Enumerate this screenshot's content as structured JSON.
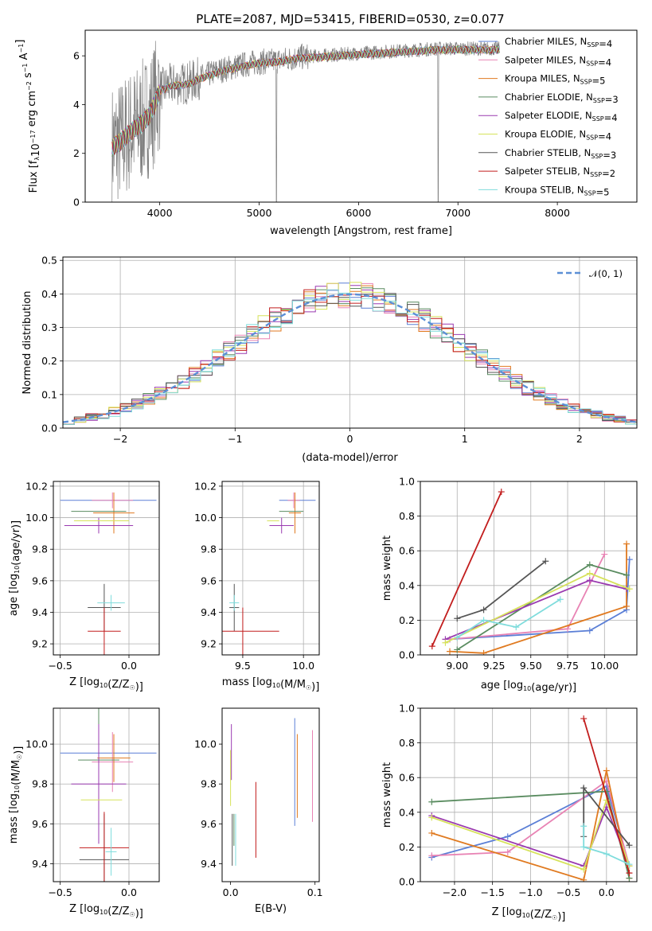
{
  "title": "PLATE=2087, MJD=53415, FIBERID=0530, z=0.077",
  "colors": {
    "Chabrier MILES": "#5b7fd6",
    "Salpeter MILES": "#e883b4",
    "Kroupa MILES": "#e07a20",
    "Chabrier ELODIE": "#5a8c60",
    "Salpeter ELODIE": "#9a3ab0",
    "Kroupa ELODIE": "#d6e25a",
    "Chabrier STELIB": "#555555",
    "Salpeter STELIB": "#c21d1d",
    "Kroupa STELIB": "#7fdcdc",
    "data": "#808080",
    "normal": "#5b8fd6"
  },
  "chart_data": [
    {
      "id": "spectrum",
      "type": "line",
      "xlabel": "wavelength [Angstrom, rest frame]",
      "ylabel": "Flux [f_λ10^-17 erg cm^-2 s^-1 A^-1]",
      "xlim": [
        3250,
        8800
      ],
      "ylim": [
        0,
        7.05
      ],
      "xticks": [
        4000,
        5000,
        6000,
        7000,
        8000
      ],
      "yticks": [
        0,
        2,
        4,
        6
      ],
      "grid": false,
      "legend": "right",
      "legend_entries": [
        {
          "name": "Chabrier MILES",
          "nssp": 4
        },
        {
          "name": "Salpeter MILES",
          "nssp": 4
        },
        {
          "name": "Kroupa MILES",
          "nssp": 5
        },
        {
          "name": "Chabrier ELODIE",
          "nssp": 3
        },
        {
          "name": "Salpeter ELODIE",
          "nssp": 4
        },
        {
          "name": "Kroupa ELODIE",
          "nssp": 4
        },
        {
          "name": "Chabrier STELIB",
          "nssp": 3
        },
        {
          "name": "Salpeter STELIB",
          "nssp": 2
        },
        {
          "name": "Kroupa STELIB",
          "nssp": 5
        }
      ],
      "continuum": {
        "x": [
          3520,
          3600,
          3700,
          3800,
          3900,
          4000,
          4100,
          4200,
          4300,
          4400,
          4600,
          4800,
          5000,
          5200,
          5400,
          5600,
          5800,
          6000,
          6200,
          6400,
          6600,
          6800,
          7000,
          7200,
          7400
        ],
        "y": [
          2.3,
          2.5,
          2.9,
          3.2,
          3.6,
          4.6,
          4.8,
          4.85,
          4.9,
          5.1,
          5.4,
          5.6,
          5.75,
          5.8,
          5.95,
          6.0,
          6.05,
          6.1,
          6.15,
          6.2,
          6.25,
          6.3,
          6.3,
          6.3,
          6.3
        ]
      }
    },
    {
      "id": "residuals",
      "type": "line",
      "xlabel": "(data-model)/error",
      "ylabel": "Normed distribution",
      "xlim": [
        -2.5,
        2.5
      ],
      "ylim": [
        0,
        0.51
      ],
      "xticks": [
        -2,
        -1,
        0,
        1,
        2
      ],
      "yticks": [
        0.0,
        0.1,
        0.2,
        0.3,
        0.4,
        0.5
      ],
      "grid": true,
      "legend": "top-right",
      "normal_label": "𝒩(0, 1)"
    },
    {
      "id": "age-vs-z",
      "type": "scatter",
      "xlabel": "Z [log10(Z/Z☉)]",
      "ylabel": "age [log10(age/yr)]",
      "xlim": [
        -0.55,
        0.22
      ],
      "ylim": [
        9.13,
        10.23
      ],
      "xticks": [
        -0.5,
        0.0
      ],
      "yticks": [
        9.2,
        9.4,
        9.6,
        9.8,
        10.0,
        10.2
      ],
      "grid": true,
      "points": [
        {
          "model": "Chabrier MILES",
          "x": -0.15,
          "xerr": 0.35,
          "y": 10.11,
          "yerr": 0.0
        },
        {
          "model": "Salpeter MILES",
          "x": -0.12,
          "xerr": 0.15,
          "y": 10.11,
          "yerr": 0.05
        },
        {
          "model": "Kroupa MILES",
          "x": -0.11,
          "xerr": 0.15,
          "y": 10.03,
          "yerr": 0.13
        },
        {
          "model": "Chabrier ELODIE",
          "x": -0.22,
          "xerr": 0.2,
          "y": 10.04,
          "yerr": 0.0
        },
        {
          "model": "Salpeter ELODIE",
          "x": -0.22,
          "xerr": 0.25,
          "y": 9.95,
          "yerr": 0.05
        },
        {
          "model": "Kroupa ELODIE",
          "x": -0.2,
          "xerr": 0.2,
          "y": 9.98,
          "yerr": 0.0
        },
        {
          "model": "Chabrier STELIB",
          "x": -0.18,
          "xerr": 0.12,
          "y": 9.43,
          "yerr": 0.15
        },
        {
          "model": "Salpeter STELIB",
          "x": -0.18,
          "xerr": 0.12,
          "y": 9.28,
          "yerr": 0.15
        },
        {
          "model": "Kroupa STELIB",
          "x": -0.13,
          "xerr": 0.1,
          "y": 9.46,
          "yerr": 0.05
        }
      ]
    },
    {
      "id": "age-vs-mass",
      "type": "scatter",
      "xlabel": "mass [log10(M/M☉)]",
      "ylabel": "",
      "xlim": [
        9.33,
        10.13
      ],
      "ylim": [
        9.13,
        10.23
      ],
      "xticks": [
        9.5,
        10.0
      ],
      "yticks": [
        9.2,
        9.4,
        9.6,
        9.8,
        10.0,
        10.2
      ],
      "grid": true,
      "points": [
        {
          "model": "Chabrier MILES",
          "x": 9.95,
          "xerr": 0.15,
          "y": 10.11,
          "yerr": 0.0
        },
        {
          "model": "Salpeter MILES",
          "x": 9.92,
          "xerr": 0.05,
          "y": 10.11,
          "yerr": 0.05
        },
        {
          "model": "Kroupa MILES",
          "x": 9.93,
          "xerr": 0.05,
          "y": 10.03,
          "yerr": 0.13
        },
        {
          "model": "Chabrier ELODIE",
          "x": 9.9,
          "xerr": 0.1,
          "y": 10.04,
          "yerr": 0.0
        },
        {
          "model": "Salpeter ELODIE",
          "x": 9.82,
          "xerr": 0.1,
          "y": 9.95,
          "yerr": 0.05
        },
        {
          "model": "Kroupa ELODIE",
          "x": 9.75,
          "xerr": 0.05,
          "y": 9.98,
          "yerr": 0.0
        },
        {
          "model": "Chabrier STELIB",
          "x": 9.43,
          "xerr": 0.04,
          "y": 9.43,
          "yerr": 0.15
        },
        {
          "model": "Salpeter STELIB",
          "x": 9.5,
          "xerr": 0.3,
          "y": 9.28,
          "yerr": 0.15
        },
        {
          "model": "Kroupa STELIB",
          "x": 9.43,
          "xerr": 0.04,
          "y": 9.46,
          "yerr": 0.05
        }
      ]
    },
    {
      "id": "weight-vs-age",
      "type": "line",
      "xlabel": "age [log10(age/yr)]",
      "ylabel": "mass weight",
      "xlim": [
        8.75,
        10.22
      ],
      "ylim": [
        0.0,
        1.0
      ],
      "xticks": [
        9.0,
        9.25,
        9.5,
        9.75,
        10.0
      ],
      "yticks": [
        0.0,
        0.2,
        0.4,
        0.6,
        0.8,
        1.0
      ],
      "grid": true,
      "series": [
        {
          "model": "Chabrier MILES",
          "x": [
            8.95,
            9.9,
            10.15,
            10.17
          ],
          "y": [
            0.09,
            0.14,
            0.26,
            0.55
          ]
        },
        {
          "model": "Salpeter MILES",
          "x": [
            8.95,
            9.75,
            10.0
          ],
          "y": [
            0.09,
            0.15,
            0.58
          ]
        },
        {
          "model": "Kroupa MILES",
          "x": [
            8.95,
            9.18,
            10.15,
            10.15
          ],
          "y": [
            0.02,
            0.01,
            0.28,
            0.64
          ]
        },
        {
          "model": "Chabrier ELODIE",
          "x": [
            9.0,
            9.9,
            10.15
          ],
          "y": [
            0.03,
            0.52,
            0.46
          ]
        },
        {
          "model": "Salpeter ELODIE",
          "x": [
            8.92,
            9.9,
            10.15
          ],
          "y": [
            0.09,
            0.43,
            0.38
          ]
        },
        {
          "model": "Kroupa ELODIE",
          "x": [
            8.92,
            9.9,
            10.17
          ],
          "y": [
            0.07,
            0.47,
            0.38
          ]
        },
        {
          "model": "Chabrier STELIB",
          "x": [
            9.0,
            9.18,
            9.6
          ],
          "y": [
            0.21,
            0.26,
            0.54
          ]
        },
        {
          "model": "Salpeter STELIB",
          "x": [
            8.83,
            9.3
          ],
          "y": [
            0.05,
            0.94
          ]
        },
        {
          "model": "Kroupa STELIB",
          "x": [
            9.0,
            9.18,
            9.4,
            9.7
          ],
          "y": [
            0.1,
            0.2,
            0.16,
            0.32
          ]
        }
      ]
    },
    {
      "id": "mass-vs-z",
      "type": "scatter",
      "xlabel": "Z [log10(Z/Z☉)]",
      "ylabel": "mass [log10(M/M☉)]",
      "xlim": [
        -0.55,
        0.22
      ],
      "ylim": [
        9.31,
        10.18
      ],
      "xticks": [
        -0.5,
        0.0
      ],
      "yticks": [
        9.4,
        9.6,
        9.8,
        10.0
      ],
      "grid": true,
      "points": [
        {
          "model": "Chabrier MILES",
          "x": -0.15,
          "xerr": 0.35,
          "y": 9.955,
          "yerr": 0.0
        },
        {
          "model": "Salpeter MILES",
          "x": -0.12,
          "xerr": 0.15,
          "y": 9.91,
          "yerr": 0.15
        },
        {
          "model": "Kroupa MILES",
          "x": -0.11,
          "xerr": 0.12,
          "y": 9.93,
          "yerr": 0.12
        },
        {
          "model": "Chabrier ELODIE",
          "x": -0.22,
          "xerr": 0.15,
          "y": 9.92,
          "yerr": 0.35
        },
        {
          "model": "Salpeter ELODIE",
          "x": -0.22,
          "xerr": 0.2,
          "y": 9.8,
          "yerr": 0.3
        },
        {
          "model": "Kroupa ELODIE",
          "x": -0.2,
          "xerr": 0.15,
          "y": 9.72,
          "yerr": 0.0
        },
        {
          "model": "Chabrier STELIB",
          "x": -0.18,
          "xerr": 0.18,
          "y": 9.42,
          "yerr": 0.23
        },
        {
          "model": "Salpeter STELIB",
          "x": -0.18,
          "xerr": 0.18,
          "y": 9.48,
          "yerr": 0.18
        },
        {
          "model": "Kroupa STELIB",
          "x": -0.13,
          "xerr": 0.04,
          "y": 9.46,
          "yerr": 0.12
        }
      ]
    },
    {
      "id": "mass-vs-ebv",
      "type": "scatter",
      "xlabel": "E(B-V)",
      "ylabel": "",
      "xlim": [
        -0.01,
        0.105
      ],
      "ylim": [
        9.31,
        10.18
      ],
      "xticks": [
        0.0,
        0.1
      ],
      "yticks": [
        9.4,
        9.6,
        9.8,
        10.0
      ],
      "grid": false,
      "points": [
        {
          "model": "Chabrier MILES",
          "x": 0.076,
          "xerr": 0.0,
          "y": 9.86,
          "yerr": 0.27
        },
        {
          "model": "Salpeter MILES",
          "x": 0.097,
          "xerr": 0.0,
          "y": 9.84,
          "yerr": 0.23
        },
        {
          "model": "Kroupa MILES",
          "x": 0.079,
          "xerr": 0.0,
          "y": 9.84,
          "yerr": 0.21
        },
        {
          "model": "Chabrier ELODIE",
          "x": 0.004,
          "xerr": 0.0,
          "y": 9.57,
          "yerr": 0.08
        },
        {
          "model": "Salpeter ELODIE",
          "x": 0.001,
          "xerr": 0.0,
          "y": 9.96,
          "yerr": 0.14
        },
        {
          "model": "Kroupa ELODIE",
          "x": 0.0,
          "xerr": 0.0,
          "y": 9.83,
          "yerr": 0.14
        },
        {
          "model": "Chabrier STELIB",
          "x": 0.002,
          "xerr": 0.0,
          "y": 9.52,
          "yerr": 0.13
        },
        {
          "model": "Salpeter STELIB",
          "x": 0.03,
          "xerr": 0.0,
          "y": 9.62,
          "yerr": 0.19
        },
        {
          "model": "Kroupa STELIB",
          "x": 0.006,
          "xerr": 0.0,
          "y": 9.52,
          "yerr": 0.13
        }
      ]
    },
    {
      "id": "weight-vs-z",
      "type": "line",
      "xlabel": "Z [log10(Z/Z☉)]",
      "ylabel": "mass weight",
      "xlim": [
        -2.45,
        0.4
      ],
      "ylim": [
        0.0,
        1.0
      ],
      "xticks": [
        -2.0,
        -1.5,
        -1.0,
        -0.5,
        0.0
      ],
      "yticks": [
        0.0,
        0.2,
        0.4,
        0.6,
        0.8,
        1.0
      ],
      "grid": true,
      "series": [
        {
          "model": "Chabrier MILES",
          "x": [
            -2.3,
            -1.3,
            0.0,
            0.3
          ],
          "y": [
            0.14,
            0.26,
            0.55,
            0.09
          ]
        },
        {
          "model": "Salpeter MILES",
          "x": [
            -2.3,
            -1.3,
            0.0,
            0.3
          ],
          "y": [
            0.15,
            0.17,
            0.58,
            0.09
          ]
        },
        {
          "model": "Kroupa MILES",
          "x": [
            -2.3,
            -0.3,
            0.0,
            0.3
          ],
          "y": [
            0.28,
            0.01,
            0.64,
            0.02
          ]
        },
        {
          "model": "Chabrier ELODIE",
          "x": [
            -2.3,
            0.0,
            0.3
          ],
          "y": [
            0.46,
            0.52,
            0.02
          ]
        },
        {
          "model": "Salpeter ELODIE",
          "x": [
            -2.3,
            -0.3,
            0.0,
            0.3
          ],
          "y": [
            0.38,
            0.09,
            0.43,
            0.09
          ]
        },
        {
          "model": "Kroupa ELODIE",
          "x": [
            -2.3,
            -0.3,
            0.0,
            0.3
          ],
          "y": [
            0.37,
            0.07,
            0.47,
            0.09
          ]
        },
        {
          "model": "Chabrier STELIB",
          "x": [
            -0.3,
            -0.3,
            0.3
          ],
          "y": [
            0.26,
            0.54,
            0.21
          ]
        },
        {
          "model": "Salpeter STELIB",
          "x": [
            -0.3,
            0.3
          ],
          "y": [
            0.94,
            0.05
          ]
        },
        {
          "model": "Kroupa STELIB",
          "x": [
            -0.3,
            -0.3,
            0.0,
            0.3
          ],
          "y": [
            0.32,
            0.2,
            0.16,
            0.1
          ]
        }
      ]
    }
  ]
}
